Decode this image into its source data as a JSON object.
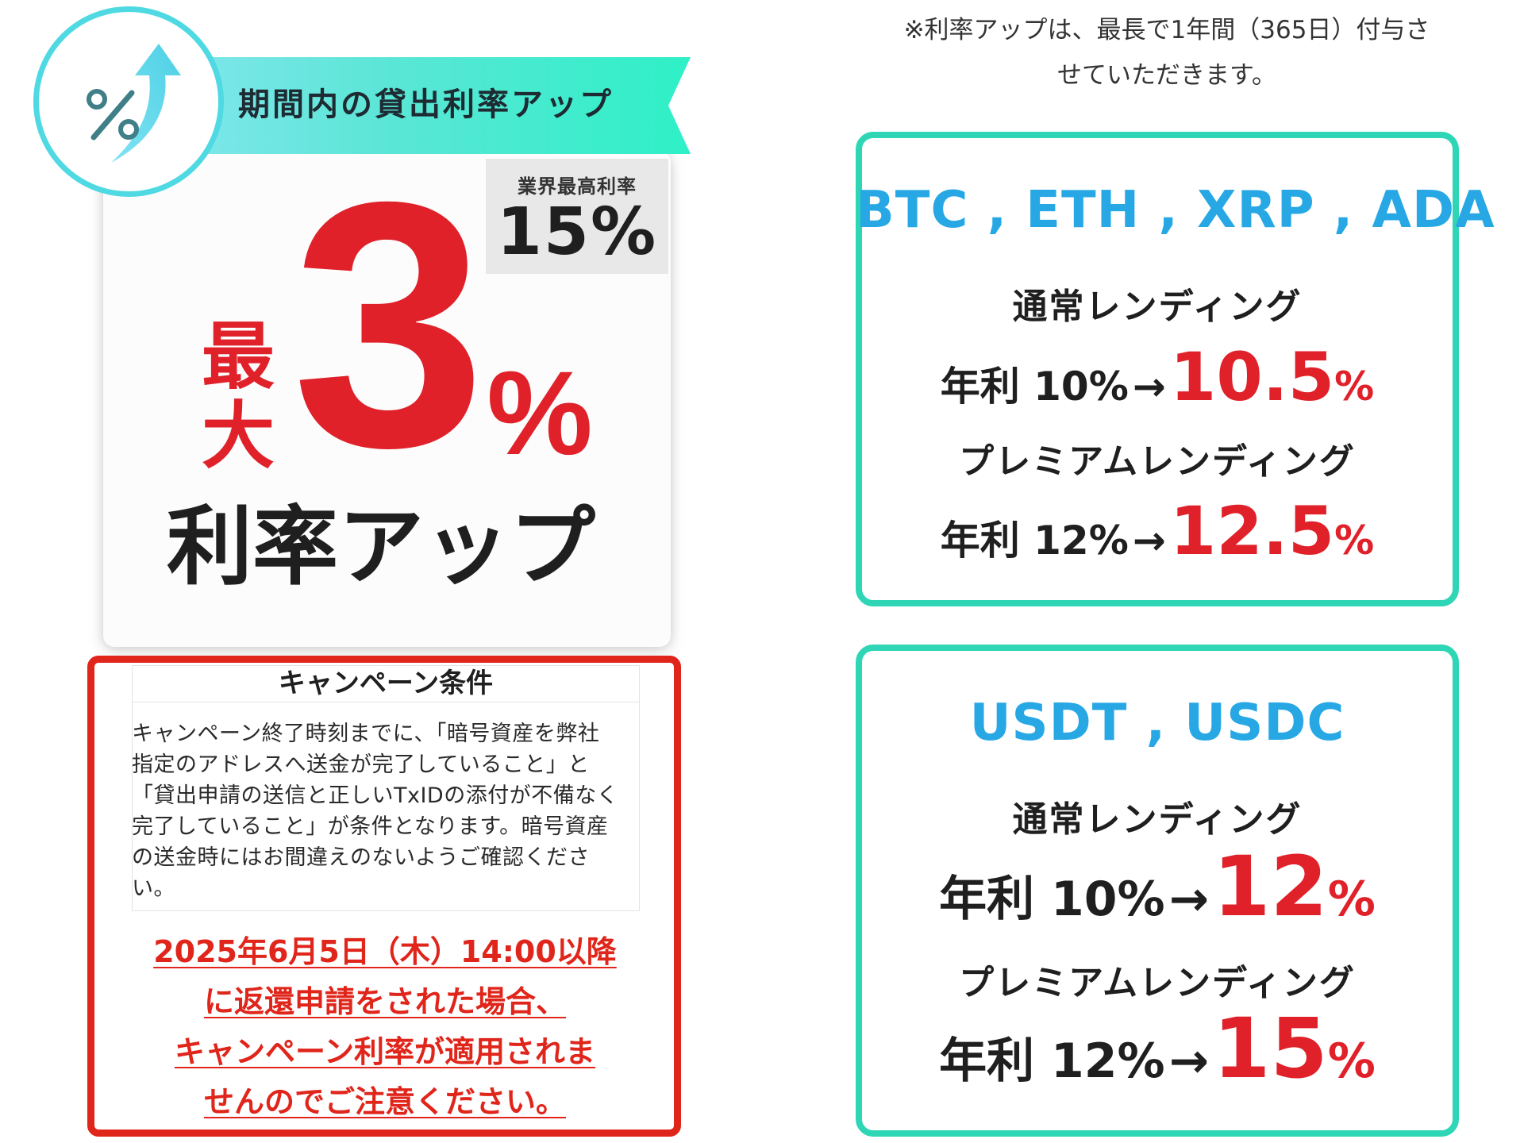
{
  "promo": {
    "ribbon_text": "期間内の貸出利率アップ",
    "badge_icon": "percent-up-arrow-icon",
    "tag_label": "業界最高利率",
    "tag_value": "15%",
    "max_char_1": "最",
    "max_char_2": "大",
    "big_number": "3",
    "big_percent": "%",
    "rate_up_text": "利率アップ"
  },
  "conditions": {
    "title": "キャンペーン条件",
    "body": "キャンペーン終了時刻までに、「暗号資産を弊社\n指定のアドレスへ送金が完了していること」と\n「貸出申請の送信と正しいTxIDの添付が不備なく\n完了していること」が条件となります。暗号資産\nの送金時にはお間違えのないようご確認くださ\nい。",
    "warning": "2025年6月5日（木）14:00以降\nに返還申請をされた場合、\nキャンペーン利率が適用されま\nせんのでご注意ください。"
  },
  "note": "※利率アップは、最長で1年間（365日）付与さ\nせていただきます。",
  "boxes": [
    {
      "coins": "BTC , ETH , XRP , ADA",
      "normal_label": "通常レンディング",
      "normal_old": "年利 10%",
      "normal_new": "10.5",
      "premium_label": "プレミアムレンディング",
      "premium_old": "年利 12%",
      "premium_new": "12.5"
    },
    {
      "coins": "USDT , USDC",
      "normal_label": "通常レンディング",
      "normal_old": "年利 10%",
      "normal_new": "12",
      "premium_label": "プレミアムレンディング",
      "premium_old": "年利 12%",
      "premium_new": "15"
    }
  ],
  "arrow": "→",
  "percent_sign": "%",
  "colors": {
    "accent_red": "#e0212a",
    "teal_border": "#2ed6b5",
    "coin_blue": "#27a8e5"
  }
}
